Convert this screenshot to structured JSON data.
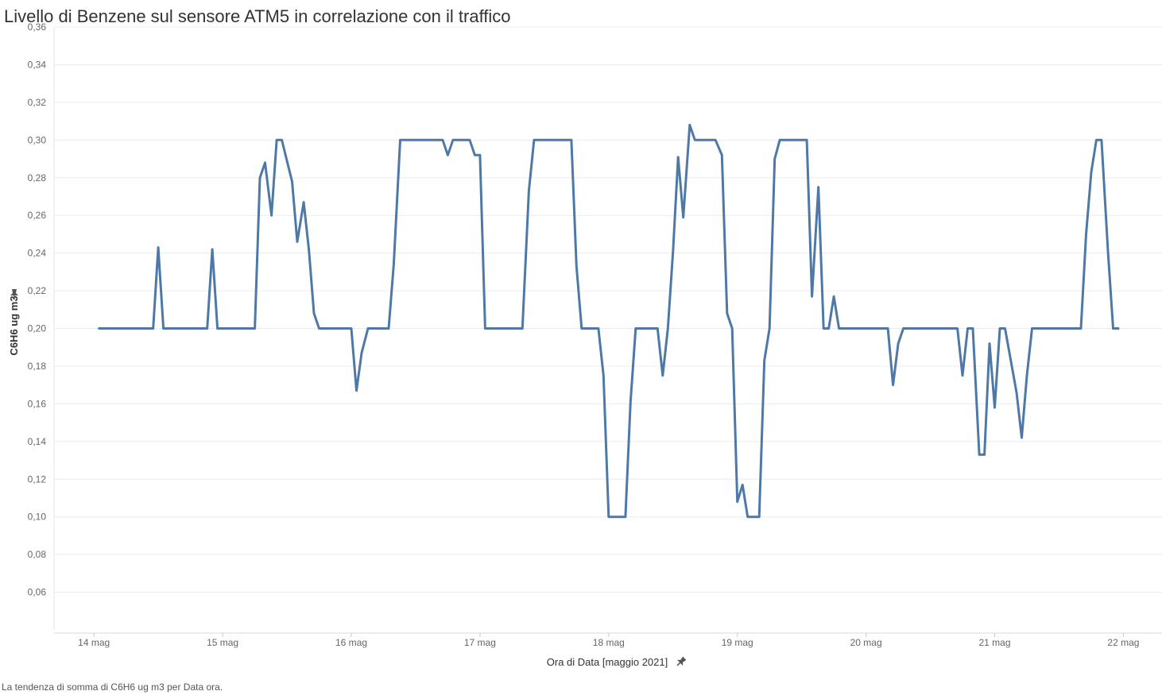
{
  "title": "Livello di Benzene sul sensore ATM5 in correlazione con il traffico",
  "caption": "La tendenza di somma di C6H6 ug m3 per Data ora.",
  "chart_data": {
    "type": "line",
    "title": "Livello di Benzene sul sensore ATM5 in correlazione con il traffico",
    "xlabel": "Ora di Data [maggio 2021]",
    "ylabel": "C6H6 ug m3",
    "pin_icon": "pin-icon",
    "line_color": "#4e79a7",
    "grid": true,
    "ylim": [
      0.04,
      0.36
    ],
    "y_ticks": [
      "0,06",
      "0,08",
      "0,10",
      "0,12",
      "0,14",
      "0,16",
      "0,18",
      "0,20",
      "0,22",
      "0,24",
      "0,26",
      "0,28",
      "0,30",
      "0,32",
      "0,34",
      "0,36"
    ],
    "y_tick_values": [
      0.06,
      0.08,
      0.1,
      0.12,
      0.14,
      0.16,
      0.18,
      0.2,
      0.22,
      0.24,
      0.26,
      0.28,
      0.3,
      0.32,
      0.34,
      0.36
    ],
    "x_range_days": [
      13.69,
      22.3
    ],
    "x_ticks": [
      {
        "label": "14 mag",
        "day": 14
      },
      {
        "label": "15 mag",
        "day": 15
      },
      {
        "label": "16 mag",
        "day": 16
      },
      {
        "label": "17 mag",
        "day": 17
      },
      {
        "label": "18 mag",
        "day": 18
      },
      {
        "label": "19 mag",
        "day": 19
      },
      {
        "label": "20 mag",
        "day": 20
      },
      {
        "label": "21 mag",
        "day": 21
      },
      {
        "label": "22 mag",
        "day": 22
      }
    ],
    "series": [
      {
        "points": [
          [
            14.04,
            0.2
          ],
          [
            14.46,
            0.2
          ],
          [
            14.5,
            0.243
          ],
          [
            14.54,
            0.2
          ],
          [
            14.88,
            0.2
          ],
          [
            14.92,
            0.242
          ],
          [
            14.96,
            0.2
          ],
          [
            15.25,
            0.2
          ],
          [
            15.29,
            0.28
          ],
          [
            15.33,
            0.288
          ],
          [
            15.38,
            0.26
          ],
          [
            15.42,
            0.3
          ],
          [
            15.46,
            0.3
          ],
          [
            15.5,
            0.289
          ],
          [
            15.54,
            0.278
          ],
          [
            15.58,
            0.246
          ],
          [
            15.63,
            0.267
          ],
          [
            15.67,
            0.242
          ],
          [
            15.71,
            0.208
          ],
          [
            15.75,
            0.2
          ],
          [
            16.0,
            0.2
          ],
          [
            16.04,
            0.167
          ],
          [
            16.08,
            0.187
          ],
          [
            16.13,
            0.2
          ],
          [
            16.29,
            0.2
          ],
          [
            16.33,
            0.234
          ],
          [
            16.38,
            0.3
          ],
          [
            16.71,
            0.3
          ],
          [
            16.75,
            0.292
          ],
          [
            16.79,
            0.3
          ],
          [
            16.92,
            0.3
          ],
          [
            16.96,
            0.292
          ],
          [
            17.0,
            0.292
          ],
          [
            17.04,
            0.2
          ],
          [
            17.33,
            0.2
          ],
          [
            17.38,
            0.273
          ],
          [
            17.42,
            0.3
          ],
          [
            17.71,
            0.3
          ],
          [
            17.75,
            0.233
          ],
          [
            17.79,
            0.2
          ],
          [
            17.92,
            0.2
          ],
          [
            17.96,
            0.175
          ],
          [
            18.0,
            0.1
          ],
          [
            18.13,
            0.1
          ],
          [
            18.17,
            0.161
          ],
          [
            18.21,
            0.2
          ],
          [
            18.38,
            0.2
          ],
          [
            18.42,
            0.175
          ],
          [
            18.46,
            0.2
          ],
          [
            18.5,
            0.241
          ],
          [
            18.54,
            0.291
          ],
          [
            18.58,
            0.259
          ],
          [
            18.63,
            0.308
          ],
          [
            18.67,
            0.3
          ],
          [
            18.83,
            0.3
          ],
          [
            18.88,
            0.292
          ],
          [
            18.92,
            0.208
          ],
          [
            18.96,
            0.2
          ],
          [
            19.0,
            0.108
          ],
          [
            19.04,
            0.117
          ],
          [
            19.08,
            0.1
          ],
          [
            19.17,
            0.1
          ],
          [
            19.21,
            0.183
          ],
          [
            19.25,
            0.2
          ],
          [
            19.29,
            0.29
          ],
          [
            19.33,
            0.3
          ],
          [
            19.54,
            0.3
          ],
          [
            19.58,
            0.217
          ],
          [
            19.63,
            0.275
          ],
          [
            19.67,
            0.2
          ],
          [
            19.71,
            0.2
          ],
          [
            19.75,
            0.217
          ],
          [
            19.79,
            0.2
          ],
          [
            20.17,
            0.2
          ],
          [
            20.21,
            0.17
          ],
          [
            20.25,
            0.192
          ],
          [
            20.29,
            0.2
          ],
          [
            20.71,
            0.2
          ],
          [
            20.75,
            0.175
          ],
          [
            20.79,
            0.2
          ],
          [
            20.83,
            0.2
          ],
          [
            20.88,
            0.133
          ],
          [
            20.92,
            0.133
          ],
          [
            20.96,
            0.192
          ],
          [
            21.0,
            0.158
          ],
          [
            21.04,
            0.2
          ],
          [
            21.08,
            0.2
          ],
          [
            21.17,
            0.166
          ],
          [
            21.21,
            0.142
          ],
          [
            21.25,
            0.175
          ],
          [
            21.29,
            0.2
          ],
          [
            21.67,
            0.2
          ],
          [
            21.71,
            0.25
          ],
          [
            21.75,
            0.283
          ],
          [
            21.79,
            0.3
          ],
          [
            21.83,
            0.3
          ],
          [
            21.88,
            0.241
          ],
          [
            21.92,
            0.2
          ],
          [
            21.96,
            0.2
          ]
        ]
      }
    ]
  }
}
